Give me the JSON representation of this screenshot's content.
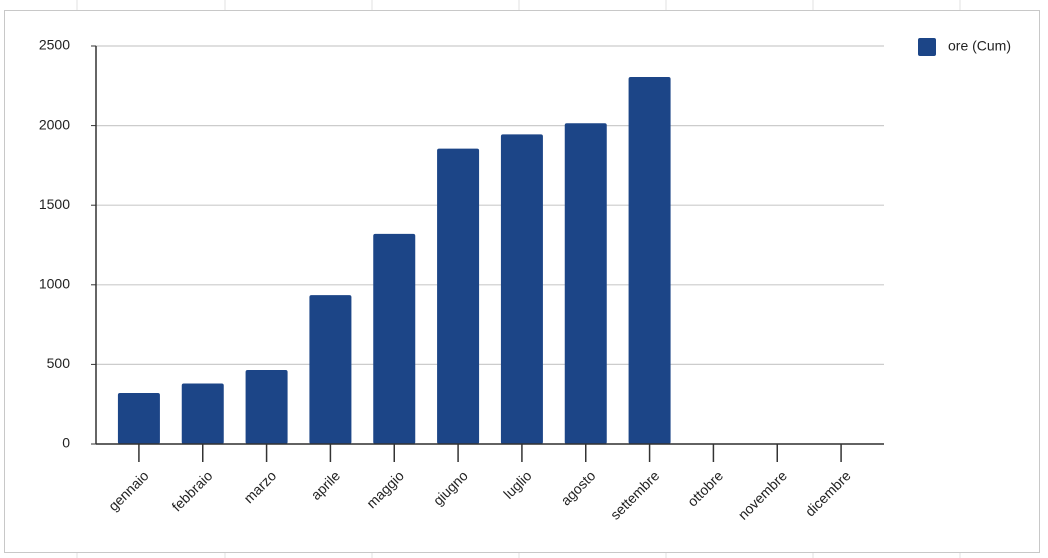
{
  "chart_data": {
    "type": "bar",
    "categories": [
      "gennaio",
      "febbraio",
      "marzo",
      "aprile",
      "maggio",
      "giugno",
      "luglio",
      "agosto",
      "settembre",
      "ottobre",
      "novembre",
      "dicembre"
    ],
    "series": [
      {
        "name": "ore (Cum)",
        "color": "#1c4587",
        "values": [
          320,
          380,
          465,
          935,
          1320,
          1855,
          1945,
          2015,
          2305,
          null,
          null,
          null
        ]
      }
    ],
    "ylim": [
      0,
      2500
    ],
    "yticks": [
      0,
      500,
      1000,
      1500,
      2000,
      2500
    ],
    "grid": true,
    "legend": "top-right"
  }
}
